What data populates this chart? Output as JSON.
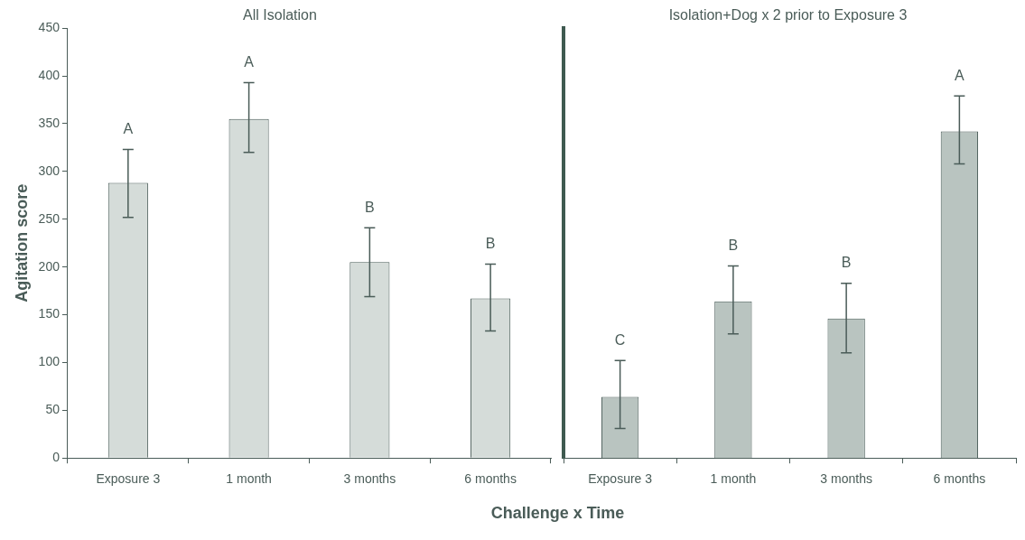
{
  "chart_data": [
    {
      "type": "bar",
      "title": "All Isolation",
      "ylabel": "Agitation score",
      "xlabel": "Challenge x Time",
      "categories": [
        "Exposure 3",
        "1 month",
        "3 months",
        "6 months"
      ],
      "series": [
        {
          "color": "#d5dcd9",
          "values": [
            288,
            355,
            205,
            167
          ],
          "errors": [
            [
              252,
              323
            ],
            [
              320,
              393
            ],
            [
              169,
              241
            ],
            [
              133,
              203
            ]
          ]
        }
      ],
      "ylim": [
        0,
        450
      ],
      "yticks": [
        0,
        50,
        100,
        150,
        200,
        250,
        300,
        350,
        400,
        450
      ],
      "grid": false,
      "legend": false,
      "annotations": [
        "A",
        "A",
        "B",
        "B"
      ]
    },
    {
      "type": "bar",
      "title": "Isolation+Dog x 2 prior to Exposure 3",
      "categories": [
        "Exposure 3",
        "1 month",
        "3 months",
        "6 months"
      ],
      "series": [
        {
          "color": "#b9c4c0",
          "values": [
            64,
            164,
            146,
            342
          ],
          "errors": [
            [
              31,
              102
            ],
            [
              130,
              201
            ],
            [
              110,
              183
            ],
            [
              308,
              379
            ]
          ]
        }
      ],
      "ylim": [
        0,
        450
      ],
      "yticks": [
        0,
        50,
        100,
        150,
        200,
        250,
        300,
        350,
        400,
        450
      ],
      "tick_labels": "x",
      "grid": false,
      "legend": false,
      "annotations": [
        "C",
        "B",
        "B",
        "A"
      ]
    }
  ]
}
